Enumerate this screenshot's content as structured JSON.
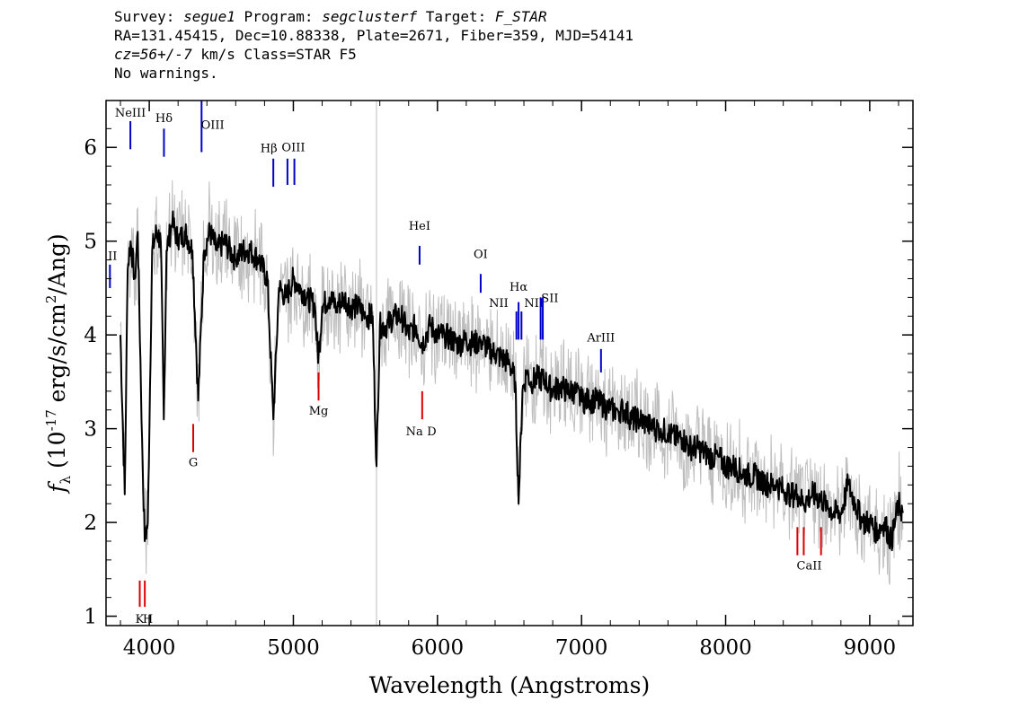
{
  "header": {
    "line1": {
      "survey_label": "Survey: ",
      "survey": "segue1",
      "program_label": " Program: ",
      "program": "segclusterf",
      "target_label": " Target: ",
      "target": "F_STAR"
    },
    "line2": "RA=131.45415, Dec=10.88338, Plate=2671, Fiber=359, MJD=54141",
    "line3": {
      "cz": "cz=56+/-7",
      "rest": " km/s Class=STAR F5"
    },
    "line4": "No warnings."
  },
  "chart_data": {
    "type": "line",
    "title": "",
    "xlabel": "Wavelength (Angstroms)",
    "ylabel": "fλ (10^-17 erg/s/cm^2/Ang)",
    "xlim": [
      3700,
      9300
    ],
    "ylim": [
      0.9,
      6.5
    ],
    "xticks": [
      4000,
      5000,
      6000,
      7000,
      8000,
      9000
    ],
    "yticks": [
      1,
      2,
      3,
      4,
      5,
      6
    ],
    "grid": false,
    "colors": {
      "flux": "#000000",
      "error_band": "#bebebe",
      "emission": "#0000c8",
      "absorption": "#dc0000"
    },
    "series": [
      {
        "x": [
          3800,
          3830,
          3850,
          3870,
          3900,
          3920,
          3950,
          3968,
          3990,
          4020,
          4050,
          4080,
          4101,
          4120,
          4160,
          4200,
          4250,
          4300,
          4340,
          4380,
          4420,
          4470,
          4520,
          4600,
          4650,
          4700,
          4760,
          4820,
          4861,
          4900,
          4950,
          5000,
          5050,
          5100,
          5150,
          5172,
          5200,
          5250,
          5300,
          5350,
          5400,
          5450,
          5500,
          5550,
          5577,
          5600,
          5650,
          5700,
          5750,
          5800,
          5850,
          5893,
          5950,
          6000,
          6050,
          6100,
          6150,
          6200,
          6250,
          6300,
          6350,
          6400,
          6450,
          6500,
          6540,
          6563,
          6590,
          6620,
          6650,
          6700,
          6750,
          6800,
          6850,
          6900,
          6950,
          7000,
          7050,
          7100,
          7150,
          7200,
          7250,
          7300,
          7350,
          7400,
          7450,
          7500,
          7550,
          7600,
          7650,
          7700,
          7750,
          7800,
          7850,
          7900,
          7950,
          8000,
          8050,
          8100,
          8150,
          8200,
          8250,
          8300,
          8350,
          8400,
          8450,
          8498,
          8542,
          8600,
          8662,
          8700,
          8750,
          8800,
          8850,
          8900,
          8950,
          9000,
          9050,
          9100,
          9150,
          9200,
          9230
        ],
        "y": [
          4.0,
          2.3,
          4.7,
          5.0,
          4.6,
          5.1,
          2.9,
          1.8,
          2.0,
          4.9,
          5.1,
          5.0,
          3.1,
          4.9,
          5.2,
          5.0,
          5.1,
          4.9,
          3.3,
          4.9,
          5.1,
          4.9,
          5.0,
          4.8,
          4.9,
          4.9,
          4.8,
          4.6,
          3.1,
          4.5,
          4.4,
          4.6,
          4.5,
          4.4,
          4.3,
          3.7,
          4.3,
          4.4,
          4.3,
          4.4,
          4.3,
          4.3,
          4.2,
          4.2,
          2.6,
          4.1,
          4.1,
          4.2,
          4.2,
          4.0,
          4.1,
          3.9,
          4.1,
          4.0,
          4.0,
          3.95,
          3.9,
          3.95,
          3.9,
          3.95,
          3.85,
          3.8,
          3.75,
          3.7,
          3.5,
          2.2,
          3.4,
          3.6,
          3.5,
          3.55,
          3.5,
          3.4,
          3.45,
          3.4,
          3.4,
          3.3,
          3.3,
          3.3,
          3.25,
          3.2,
          3.2,
          3.2,
          3.1,
          3.1,
          3.05,
          3.0,
          3.0,
          2.95,
          2.9,
          2.9,
          2.8,
          2.8,
          2.75,
          2.7,
          2.7,
          2.6,
          2.6,
          2.55,
          2.5,
          2.5,
          2.45,
          2.4,
          2.4,
          2.35,
          2.3,
          2.3,
          2.2,
          2.3,
          2.25,
          2.2,
          2.1,
          2.1,
          2.4,
          2.2,
          2.0,
          2.0,
          1.9,
          2.0,
          1.8,
          2.2,
          2.1
        ]
      }
    ],
    "emission_lines": [
      {
        "label": "NeIII",
        "wavelength": 3869
      },
      {
        "label": "Hδ",
        "wavelength": 4102
      },
      {
        "label": "OIII",
        "wavelength": 4363
      },
      {
        "label": "Hβ",
        "wavelength": 4861
      },
      {
        "label": "OIII",
        "wavelength": 4959
      },
      {
        "label": "OIII",
        "wavelength": 5007
      },
      {
        "label": "HeI",
        "wavelength": 5876
      },
      {
        "label": "OI",
        "wavelength": 6300
      },
      {
        "label": "NII",
        "wavelength": 6548
      },
      {
        "label": "Hα",
        "wavelength": 6563
      },
      {
        "label": "NII",
        "wavelength": 6583
      },
      {
        "label": "SII",
        "wavelength": 6716
      },
      {
        "label": "SII",
        "wavelength": 6731
      },
      {
        "label": "ArIII",
        "wavelength": 7135
      },
      {
        "label": "II",
        "wavelength": 3727
      }
    ],
    "absorption_lines": [
      {
        "label": "K",
        "wavelength": 3934
      },
      {
        "label": "H",
        "wavelength": 3969
      },
      {
        "label": "G",
        "wavelength": 4305
      },
      {
        "label": "Mg",
        "wavelength": 5175
      },
      {
        "label": "Na",
        "wavelength": 5894
      },
      {
        "label": "D",
        "wavelength": 5894
      },
      {
        "label": "CaII",
        "wavelength": 8498
      },
      {
        "label": "CaII",
        "wavelength": 8542
      },
      {
        "label": "CaII",
        "wavelength": 8662
      }
    ]
  }
}
